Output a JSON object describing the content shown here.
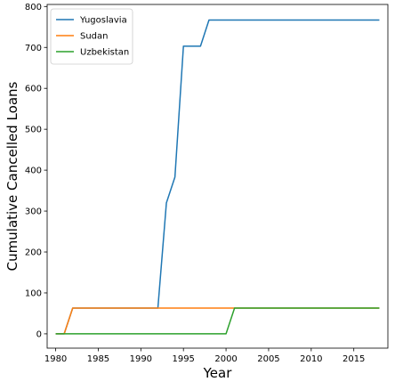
{
  "chart_data": {
    "type": "line",
    "title": "",
    "xlabel": "Year",
    "ylabel": "Cumulative Cancelled Loans",
    "xlim": [
      1979,
      2019
    ],
    "ylim": [
      -35,
      805
    ],
    "xticks": [
      1980,
      1985,
      1990,
      1995,
      2000,
      2005,
      2010,
      2015
    ],
    "yticks": [
      0,
      100,
      200,
      300,
      400,
      500,
      600,
      700,
      800
    ],
    "grid": false,
    "legend_position": "upper-left",
    "series": [
      {
        "name": "Yugoslavia",
        "color": "#1f77b4",
        "points": [
          [
            1980,
            0
          ],
          [
            1981,
            0
          ],
          [
            1982,
            63
          ],
          [
            1992,
            63
          ],
          [
            1993,
            320
          ],
          [
            1994,
            383
          ],
          [
            1995,
            703
          ],
          [
            1997,
            703
          ],
          [
            1998,
            767
          ],
          [
            2018,
            767
          ]
        ]
      },
      {
        "name": "Sudan",
        "color": "#ff7f0e",
        "points": [
          [
            1980,
            0
          ],
          [
            1981,
            0
          ],
          [
            1982,
            63
          ],
          [
            2018,
            63
          ]
        ]
      },
      {
        "name": "Uzbekistan",
        "color": "#2ca02c",
        "points": [
          [
            1980,
            0
          ],
          [
            2000,
            0
          ],
          [
            2001,
            63
          ],
          [
            2018,
            63
          ]
        ]
      }
    ]
  }
}
